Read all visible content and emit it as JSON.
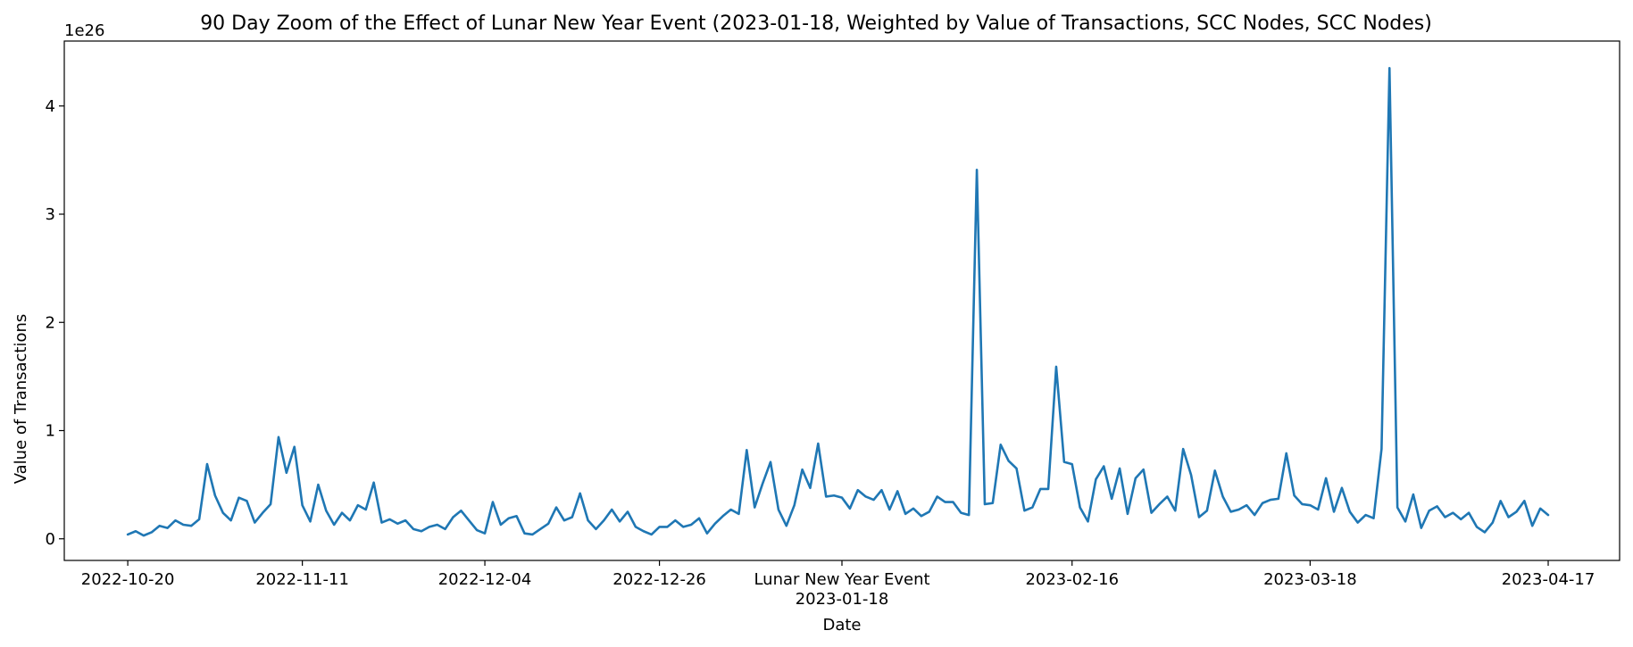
{
  "chart_data": {
    "type": "line",
    "title": "90 Day Zoom of the Effect of Lunar New Year Event (2023-01-18, Weighted by Value of Transactions, SCC Nodes, SCC Nodes)",
    "xlabel": "Date",
    "ylabel": "Value of Transactions",
    "y_offset_label": "1e26",
    "x_ticks": [
      {
        "date": "2022-10-20",
        "label": "2022-10-20"
      },
      {
        "date": "2022-11-11",
        "label": "2022-11-11"
      },
      {
        "date": "2022-12-04",
        "label": "2022-12-04"
      },
      {
        "date": "2022-12-26",
        "label": "2022-12-26"
      },
      {
        "date": "2023-01-18",
        "label": "2023-01-18",
        "event_label": "Lunar New Year Event"
      },
      {
        "date": "2023-02-16",
        "label": "2023-02-16"
      },
      {
        "date": "2023-03-18",
        "label": "2023-03-18"
      },
      {
        "date": "2023-04-17",
        "label": "2023-04-17"
      }
    ],
    "y_ticks": [
      "0",
      "1",
      "2",
      "3",
      "4"
    ],
    "ylim": [
      -0.2,
      4.6
    ],
    "xlim": [
      "2022-10-12",
      "2023-04-26"
    ],
    "grid": false,
    "color": "#1f77b4",
    "series": [
      {
        "start_date": "2022-10-20",
        "step_days": 1,
        "values": [
          0.04,
          0.07,
          0.03,
          0.06,
          0.12,
          0.1,
          0.17,
          0.13,
          0.12,
          0.18,
          0.69,
          0.4,
          0.24,
          0.17,
          0.38,
          0.35,
          0.15,
          0.24,
          0.32,
          0.94,
          0.61,
          0.85,
          0.31,
          0.16,
          0.5,
          0.26,
          0.13,
          0.24,
          0.17,
          0.31,
          0.27,
          0.52,
          0.15,
          0.18,
          0.14,
          0.17,
          0.09,
          0.07,
          0.11,
          0.13,
          0.09,
          0.2,
          0.26,
          0.17,
          0.08,
          0.05,
          0.34,
          0.13,
          0.19,
          0.21,
          0.05,
          0.04,
          0.09,
          0.14,
          0.29,
          0.17,
          0.2,
          0.42,
          0.17,
          0.09,
          0.17,
          0.27,
          0.16,
          0.25,
          0.11,
          0.07,
          0.04,
          0.11,
          0.11,
          0.17,
          0.11,
          0.13,
          0.19,
          0.05,
          0.14,
          0.21,
          0.27,
          0.23,
          0.82,
          0.29,
          0.51,
          0.71,
          0.27,
          0.12,
          0.31,
          0.64,
          0.47,
          0.88,
          0.39,
          0.4,
          0.38,
          0.28,
          0.45,
          0.39,
          0.36,
          0.45,
          0.27,
          0.44,
          0.23,
          0.28,
          0.21,
          0.25,
          0.39,
          0.34,
          0.34,
          0.24,
          0.22,
          3.41,
          0.32,
          0.33,
          0.87,
          0.72,
          0.65,
          0.26,
          0.29,
          0.46,
          0.46,
          1.59,
          0.71,
          0.69,
          0.29,
          0.16,
          0.55,
          0.67,
          0.37,
          0.65,
          0.23,
          0.56,
          0.64,
          0.24,
          0.32,
          0.39,
          0.26,
          0.83,
          0.59,
          0.2,
          0.26,
          0.63,
          0.39,
          0.25,
          0.27,
          0.31,
          0.22,
          0.33,
          0.36,
          0.37,
          0.79,
          0.4,
          0.32,
          0.31,
          0.27,
          0.56,
          0.25,
          0.47,
          0.25,
          0.15,
          0.22,
          0.19,
          0.83,
          4.35,
          0.29,
          0.16,
          0.41,
          0.1,
          0.26,
          0.3,
          0.2,
          0.24,
          0.18,
          0.24,
          0.11,
          0.06,
          0.15,
          0.35,
          0.2,
          0.25,
          0.35,
          0.12,
          0.28,
          0.22
        ]
      }
    ]
  }
}
